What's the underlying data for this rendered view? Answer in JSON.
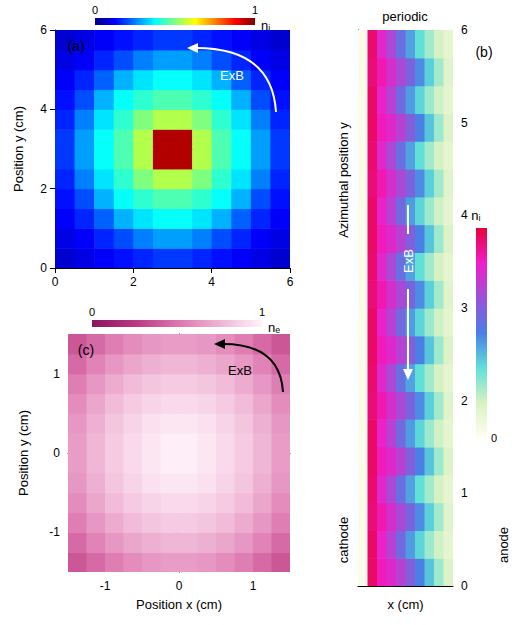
{
  "chart_data": [
    {
      "type": "heatmap",
      "title": "(a)",
      "x": [
        0.25,
        0.75,
        1.25,
        1.75,
        2.25,
        2.75,
        3.25,
        3.75,
        4.25,
        4.75,
        5.25,
        5.75
      ],
      "y": [
        0.25,
        0.75,
        1.25,
        1.75,
        2.25,
        2.75,
        3.25,
        3.75,
        4.25,
        4.75,
        5.25,
        5.75
      ],
      "cells": [
        [
          0.08,
          0.1,
          0.12,
          0.14,
          0.16,
          0.18,
          0.18,
          0.16,
          0.14,
          0.12,
          0.1,
          0.08
        ],
        [
          0.1,
          0.12,
          0.16,
          0.2,
          0.25,
          0.28,
          0.28,
          0.25,
          0.2,
          0.16,
          0.12,
          0.1
        ],
        [
          0.12,
          0.16,
          0.22,
          0.3,
          0.35,
          0.38,
          0.38,
          0.35,
          0.3,
          0.22,
          0.16,
          0.12
        ],
        [
          0.14,
          0.2,
          0.3,
          0.38,
          0.42,
          0.45,
          0.45,
          0.42,
          0.38,
          0.3,
          0.2,
          0.14
        ],
        [
          0.16,
          0.25,
          0.35,
          0.42,
          0.5,
          0.55,
          0.55,
          0.5,
          0.42,
          0.35,
          0.25,
          0.16
        ],
        [
          0.18,
          0.28,
          0.38,
          0.45,
          0.55,
          0.95,
          0.95,
          0.55,
          0.45,
          0.38,
          0.28,
          0.18
        ],
        [
          0.18,
          0.28,
          0.38,
          0.45,
          0.55,
          0.95,
          0.95,
          0.55,
          0.45,
          0.38,
          0.28,
          0.18
        ],
        [
          0.16,
          0.25,
          0.35,
          0.42,
          0.5,
          0.55,
          0.55,
          0.5,
          0.42,
          0.35,
          0.25,
          0.16
        ],
        [
          0.14,
          0.2,
          0.3,
          0.38,
          0.42,
          0.45,
          0.45,
          0.42,
          0.38,
          0.3,
          0.2,
          0.14
        ],
        [
          0.12,
          0.16,
          0.22,
          0.3,
          0.35,
          0.38,
          0.38,
          0.35,
          0.3,
          0.22,
          0.16,
          0.12
        ],
        [
          0.1,
          0.12,
          0.16,
          0.2,
          0.25,
          0.28,
          0.28,
          0.25,
          0.2,
          0.16,
          0.12,
          0.1
        ],
        [
          0.08,
          0.1,
          0.12,
          0.14,
          0.16,
          0.18,
          0.18,
          0.16,
          0.14,
          0.12,
          0.1,
          0.08
        ]
      ],
      "xlim": [
        0,
        6
      ],
      "xticks": [
        0,
        2,
        4,
        6
      ],
      "ylim": [
        0,
        6
      ],
      "yticks": [
        0,
        2,
        4,
        6
      ],
      "ylabel": "Position y (cm)",
      "colorbar": {
        "label": "nᵢ",
        "range": [
          0,
          1
        ],
        "ticks": [
          0,
          1
        ],
        "colors": [
          "#00007f",
          "#0000ff",
          "#007fff",
          "#00ffff",
          "#7fff7f",
          "#ffff00",
          "#ff7f00",
          "#ff0000",
          "#7f0000"
        ]
      },
      "annotations": [
        "ExB"
      ]
    },
    {
      "type": "heatmap",
      "title": "(b)",
      "x": [
        0.1,
        0.3,
        0.5,
        0.7,
        0.9,
        1.1,
        1.3,
        1.5,
        1.7,
        1.9
      ],
      "y": [
        0.15,
        0.45,
        0.75,
        1.05,
        1.35,
        1.65,
        1.95,
        2.25,
        2.55,
        2.85,
        3.15,
        3.45,
        3.75,
        4.05,
        4.35,
        4.65,
        4.95,
        5.25,
        5.55,
        5.85
      ],
      "cells": [
        [
          0.03,
          0.95,
          0.85,
          0.8,
          0.72,
          0.62,
          0.5,
          0.38,
          0.25,
          0.15
        ],
        [
          0.03,
          0.95,
          0.82,
          0.72,
          0.58,
          0.45,
          0.35,
          0.25,
          0.18,
          0.12
        ],
        [
          0.03,
          0.93,
          0.86,
          0.78,
          0.7,
          0.6,
          0.48,
          0.36,
          0.24,
          0.14
        ],
        [
          0.03,
          0.94,
          0.8,
          0.7,
          0.56,
          0.44,
          0.33,
          0.24,
          0.17,
          0.12
        ],
        [
          0.03,
          0.95,
          0.85,
          0.8,
          0.72,
          0.62,
          0.5,
          0.38,
          0.25,
          0.15
        ],
        [
          0.03,
          0.95,
          0.82,
          0.72,
          0.58,
          0.45,
          0.35,
          0.25,
          0.18,
          0.12
        ],
        [
          0.03,
          0.93,
          0.86,
          0.78,
          0.7,
          0.6,
          0.48,
          0.36,
          0.24,
          0.14
        ],
        [
          0.03,
          0.94,
          0.8,
          0.7,
          0.56,
          0.44,
          0.33,
          0.24,
          0.17,
          0.12
        ],
        [
          0.03,
          0.95,
          0.85,
          0.8,
          0.72,
          0.62,
          0.5,
          0.38,
          0.25,
          0.15
        ],
        [
          0.03,
          0.95,
          0.82,
          0.72,
          0.58,
          0.45,
          0.35,
          0.25,
          0.18,
          0.12
        ],
        [
          0.03,
          0.93,
          0.86,
          0.78,
          0.7,
          0.6,
          0.48,
          0.36,
          0.24,
          0.14
        ],
        [
          0.03,
          0.94,
          0.8,
          0.7,
          0.56,
          0.44,
          0.33,
          0.24,
          0.17,
          0.12
        ],
        [
          0.03,
          0.95,
          0.85,
          0.8,
          0.72,
          0.62,
          0.5,
          0.38,
          0.25,
          0.15
        ],
        [
          0.03,
          0.95,
          0.82,
          0.72,
          0.58,
          0.45,
          0.35,
          0.25,
          0.18,
          0.12
        ],
        [
          0.03,
          0.93,
          0.86,
          0.78,
          0.7,
          0.6,
          0.48,
          0.36,
          0.24,
          0.14
        ],
        [
          0.03,
          0.94,
          0.8,
          0.7,
          0.56,
          0.44,
          0.33,
          0.24,
          0.17,
          0.12
        ],
        [
          0.03,
          0.95,
          0.85,
          0.8,
          0.72,
          0.62,
          0.5,
          0.38,
          0.25,
          0.15
        ],
        [
          0.03,
          0.95,
          0.82,
          0.72,
          0.58,
          0.45,
          0.35,
          0.25,
          0.18,
          0.12
        ],
        [
          0.03,
          0.93,
          0.86,
          0.78,
          0.7,
          0.6,
          0.48,
          0.36,
          0.24,
          0.14
        ],
        [
          0.03,
          0.94,
          0.8,
          0.7,
          0.56,
          0.44,
          0.33,
          0.24,
          0.17,
          0.12
        ]
      ],
      "xlim": [
        0,
        2
      ],
      "ylim": [
        0,
        6
      ],
      "yticks": [
        0,
        1,
        2,
        3,
        4,
        5,
        6
      ],
      "xlabel": "x (cm)",
      "ylabel": "Azimuthal position y",
      "tick_labels": "y",
      "colorbar": {
        "label": "nᵢ",
        "range": [
          0,
          1
        ],
        "ticks": [
          0
        ],
        "colors": [
          "#fffef2",
          "#d9f2c2",
          "#5fe0d8",
          "#4a7fe6",
          "#9a52d8",
          "#f01ec8",
          "#e8003c"
        ]
      },
      "annotations": [
        "periodic",
        "ExB",
        "cathode",
        "anode"
      ]
    },
    {
      "type": "heatmap",
      "title": "(c)",
      "x": [
        -1.375,
        -1.125,
        -0.875,
        -0.625,
        -0.375,
        -0.125,
        0.125,
        0.375,
        0.625,
        0.875,
        1.125,
        1.375
      ],
      "y": [
        -1.375,
        -1.125,
        -0.875,
        -0.625,
        -0.375,
        -0.125,
        0.125,
        0.375,
        0.625,
        0.875,
        1.125,
        1.375
      ],
      "cells": [
        [
          0.38,
          0.46,
          0.54,
          0.6,
          0.64,
          0.66,
          0.66,
          0.64,
          0.6,
          0.54,
          0.46,
          0.38
        ],
        [
          0.46,
          0.56,
          0.64,
          0.7,
          0.74,
          0.76,
          0.76,
          0.74,
          0.7,
          0.64,
          0.56,
          0.46
        ],
        [
          0.54,
          0.64,
          0.72,
          0.78,
          0.82,
          0.84,
          0.84,
          0.82,
          0.78,
          0.72,
          0.64,
          0.54
        ],
        [
          0.6,
          0.7,
          0.78,
          0.84,
          0.88,
          0.9,
          0.9,
          0.88,
          0.84,
          0.78,
          0.7,
          0.6
        ],
        [
          0.64,
          0.74,
          0.82,
          0.88,
          0.93,
          0.95,
          0.95,
          0.93,
          0.88,
          0.82,
          0.74,
          0.64
        ],
        [
          0.66,
          0.76,
          0.84,
          0.9,
          0.95,
          0.98,
          0.98,
          0.95,
          0.9,
          0.84,
          0.76,
          0.66
        ],
        [
          0.66,
          0.76,
          0.84,
          0.9,
          0.95,
          0.98,
          0.98,
          0.95,
          0.9,
          0.84,
          0.76,
          0.66
        ],
        [
          0.64,
          0.74,
          0.82,
          0.88,
          0.93,
          0.95,
          0.95,
          0.93,
          0.88,
          0.82,
          0.74,
          0.64
        ],
        [
          0.6,
          0.7,
          0.78,
          0.84,
          0.88,
          0.9,
          0.9,
          0.88,
          0.84,
          0.78,
          0.7,
          0.6
        ],
        [
          0.54,
          0.64,
          0.72,
          0.78,
          0.82,
          0.84,
          0.84,
          0.82,
          0.78,
          0.72,
          0.64,
          0.54
        ],
        [
          0.46,
          0.56,
          0.64,
          0.7,
          0.74,
          0.76,
          0.76,
          0.74,
          0.7,
          0.64,
          0.56,
          0.46
        ],
        [
          0.38,
          0.46,
          0.54,
          0.6,
          0.64,
          0.66,
          0.66,
          0.64,
          0.6,
          0.54,
          0.46,
          0.38
        ]
      ],
      "xlim": [
        -1.5,
        1.5
      ],
      "xticks": [
        -1,
        0,
        1
      ],
      "ylim": [
        -1.5,
        1.5
      ],
      "yticks": [
        -1,
        0,
        1
      ],
      "xlabel": "Position x (cm)",
      "ylabel": "Position y (cm)",
      "colorbar": {
        "label": "nₑ",
        "range": [
          0,
          1
        ],
        "ticks": [
          0,
          1
        ],
        "colors": [
          "#8a1462",
          "#b8377f",
          "#dc74ad",
          "#efb3d4",
          "#fff3fa"
        ]
      },
      "annotations": [
        "ExB"
      ]
    }
  ]
}
